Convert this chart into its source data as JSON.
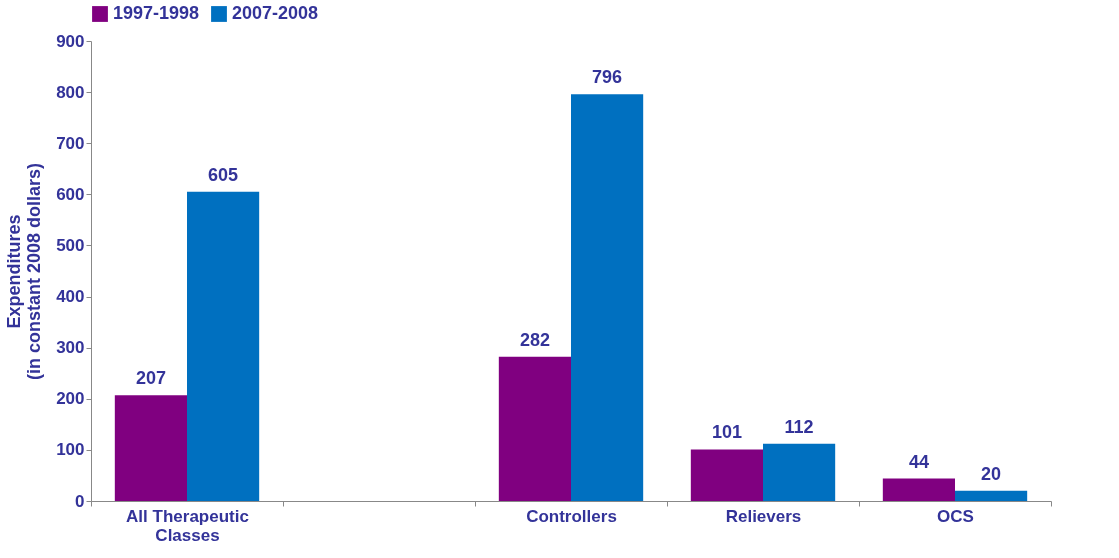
{
  "chart_data": {
    "type": "bar",
    "ylabel": "Expenditures\n(in constant 2008 dollars)",
    "categories": [
      "All Therapeutic Classes",
      null,
      "Controllers",
      "Relievers",
      "OCS"
    ],
    "series": [
      {
        "name": "1997-1998",
        "color": "#800080",
        "values": [
          207,
          null,
          282,
          101,
          44
        ]
      },
      {
        "name": "2007-2008",
        "color": "#0070c0",
        "values": [
          605,
          null,
          796,
          112,
          20
        ]
      }
    ],
    "ylim": [
      0,
      900
    ],
    "yticks": [
      0,
      100,
      200,
      300,
      400,
      500,
      600,
      700,
      800,
      900
    ],
    "grid": false,
    "legend": "top",
    "data_labels": true
  }
}
